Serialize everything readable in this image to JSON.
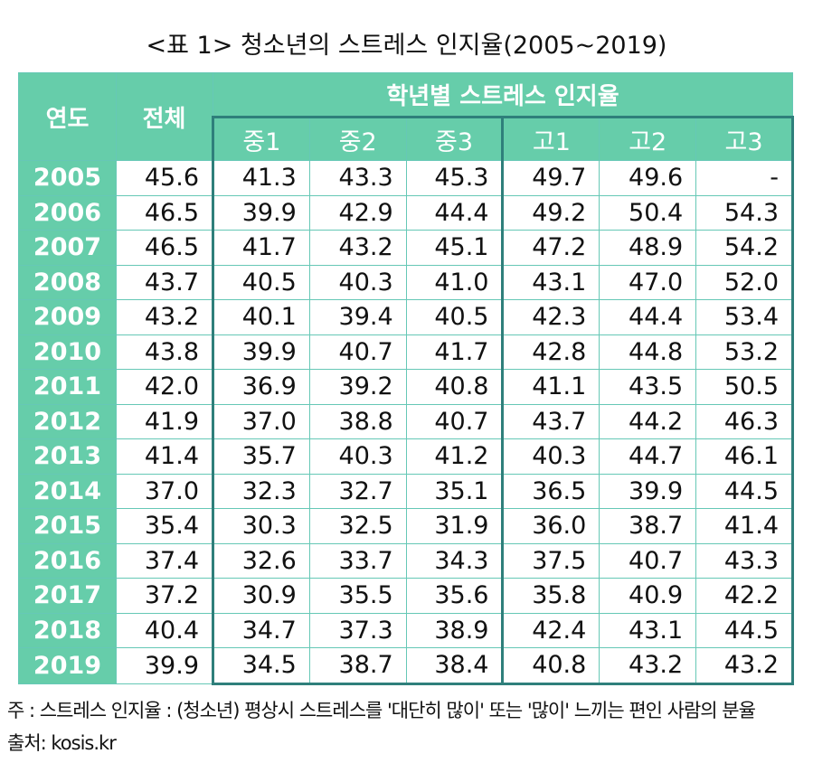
{
  "title": "<표 1> 청소년의 스트레스 인지율(2005~2019)",
  "headers": {
    "year": "연도",
    "total": "전체",
    "group": "학년별 스트레스 인지율",
    "grades": [
      "중1",
      "중2",
      "중3",
      "고1",
      "고2",
      "고3"
    ]
  },
  "rows": [
    {
      "year": "2005",
      "values": [
        "45.6",
        "41.3",
        "43.3",
        "45.3",
        "49.7",
        "49.6",
        "-"
      ]
    },
    {
      "year": "2006",
      "values": [
        "46.5",
        "39.9",
        "42.9",
        "44.4",
        "49.2",
        "50.4",
        "54.3"
      ]
    },
    {
      "year": "2007",
      "values": [
        "46.5",
        "41.7",
        "43.2",
        "45.1",
        "47.2",
        "48.9",
        "54.2"
      ]
    },
    {
      "year": "2008",
      "values": [
        "43.7",
        "40.5",
        "40.3",
        "41.0",
        "43.1",
        "47.0",
        "52.0"
      ]
    },
    {
      "year": "2009",
      "values": [
        "43.2",
        "40.1",
        "39.4",
        "40.5",
        "42.3",
        "44.4",
        "53.4"
      ]
    },
    {
      "year": "2010",
      "values": [
        "43.8",
        "39.9",
        "40.7",
        "41.7",
        "42.8",
        "44.8",
        "53.2"
      ]
    },
    {
      "year": "2011",
      "values": [
        "42.0",
        "36.9",
        "39.2",
        "40.8",
        "41.1",
        "43.5",
        "50.5"
      ]
    },
    {
      "year": "2012",
      "values": [
        "41.9",
        "37.0",
        "38.8",
        "40.7",
        "43.7",
        "44.2",
        "46.3"
      ]
    },
    {
      "year": "2013",
      "values": [
        "41.4",
        "35.7",
        "40.3",
        "41.2",
        "40.3",
        "44.7",
        "46.1"
      ]
    },
    {
      "year": "2014",
      "values": [
        "37.0",
        "32.3",
        "32.7",
        "35.1",
        "36.5",
        "39.9",
        "44.5"
      ]
    },
    {
      "year": "2015",
      "values": [
        "35.4",
        "30.3",
        "32.5",
        "31.9",
        "36.0",
        "38.7",
        "41.4"
      ]
    },
    {
      "year": "2016",
      "values": [
        "37.4",
        "32.6",
        "33.7",
        "34.3",
        "37.5",
        "40.7",
        "43.3"
      ]
    },
    {
      "year": "2017",
      "values": [
        "37.2",
        "30.9",
        "35.5",
        "35.6",
        "35.8",
        "40.9",
        "42.2"
      ]
    },
    {
      "year": "2018",
      "values": [
        "40.4",
        "34.7",
        "37.3",
        "38.9",
        "42.4",
        "43.1",
        "44.5"
      ]
    },
    {
      "year": "2019",
      "values": [
        "39.9",
        "34.5",
        "38.7",
        "38.4",
        "40.8",
        "43.2",
        "43.2"
      ]
    }
  ],
  "note": "주 : 스트레스 인지율 : (청소년) 평상시 스트레스를 '대단히 많이' 또는 '많이' 느끼는 편인 사람의 분율",
  "source": "출처:  kosis.kr"
}
